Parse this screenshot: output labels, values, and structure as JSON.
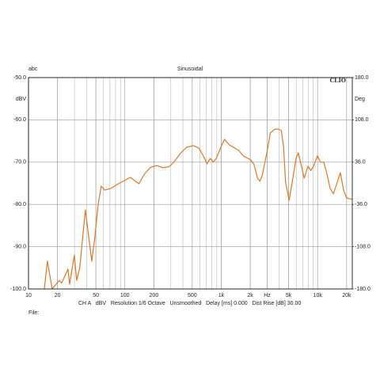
{
  "chart_data": {
    "type": "line",
    "title": "Sinusoidal",
    "corner_label": "abc",
    "brand": "CLIO",
    "y_label": "dBV",
    "y2_label": "Deg",
    "footer": "CH A   dBV   Resolution 1/6 Octave   Unsmoothed   Delay [ms] 0.000   Dist Rise [dB] 30.00",
    "file_label": "File:",
    "log_x": true,
    "grid": true,
    "xlim": [
      10,
      22900
    ],
    "xticks": [
      10,
      20,
      50,
      100,
      200,
      500,
      {
        "value": 1000,
        "label": "1k"
      },
      {
        "value": 2000,
        "label": "2k"
      },
      {
        "value": 3000,
        "label": "Hz"
      },
      {
        "value": 5000,
        "label": "5k"
      },
      {
        "value": 10000,
        "label": "10k"
      },
      {
        "value": 20000,
        "label": "20k"
      }
    ],
    "ylim": [
      -100,
      -50
    ],
    "yticks": [
      {
        "value": -50,
        "label": "-50.0"
      },
      {
        "value": -60,
        "label": "-60.0"
      },
      {
        "value": -70,
        "label": "-70.0"
      },
      {
        "value": -80,
        "label": "-80.0"
      },
      {
        "value": -90,
        "label": "-90.0"
      },
      {
        "value": -100,
        "label": "-100.0"
      }
    ],
    "y2lim": [
      -180,
      180
    ],
    "y2ticks": [
      {
        "value": 180,
        "label": "180.0"
      },
      {
        "value": 108,
        "label": "108.0"
      },
      {
        "value": 36,
        "label": "36.0"
      },
      {
        "value": -36,
        "label": "-36.0"
      },
      {
        "value": -108,
        "label": "-108.0"
      },
      {
        "value": -180,
        "label": "-180.0"
      }
    ],
    "x": [
      14.6,
      15.7,
      17.6,
      20.9,
      22.1,
      25.7,
      26.7,
      29.9,
      31.6,
      34,
      38.9,
      45.3,
      48.8,
      52.6,
      56.8,
      61.8,
      72,
      82.9,
      100,
      114,
      125,
      140,
      160,
      183,
      213,
      247,
      287,
      322,
      375,
      435,
      515,
      587,
      658,
      713,
      768,
      827,
      889,
      1000,
      1080,
      1210,
      1340,
      1510,
      1690,
      1890,
      2030,
      2190,
      2380,
      2520,
      2660,
      3010,
      3230,
      3610,
      3900,
      4200,
      4430,
      4650,
      5060,
      5450,
      5980,
      6300,
      6800,
      7250,
      7940,
      8500,
      9060,
      9950,
      10700,
      11600,
      12500,
      13500,
      14600,
      15800,
      17200,
      18600,
      20000,
      22900
    ],
    "series": [
      {
        "color": "#d9782d",
        "values": [
          -100,
          -93.4,
          -100,
          -98,
          -98.6,
          -95.3,
          -98.9,
          -92,
          -98,
          -95,
          -81.3,
          -93.4,
          -87.8,
          -80.3,
          -75.7,
          -76.6,
          -76.2,
          -75.3,
          -74.3,
          -73.6,
          -74.3,
          -75.1,
          -72.8,
          -71.3,
          -70.8,
          -71.3,
          -71.1,
          -70,
          -68,
          -66.5,
          -66.1,
          -66.7,
          -68.7,
          -70.4,
          -69.1,
          -70,
          -69.1,
          -66.3,
          -64.6,
          -65.9,
          -66.5,
          -67.2,
          -68.5,
          -69.1,
          -69.5,
          -70.6,
          -73.8,
          -74.5,
          -73.2,
          -67.2,
          -63.1,
          -62.2,
          -62.2,
          -62.5,
          -66.3,
          -74.7,
          -79,
          -74.7,
          -69.1,
          -67.8,
          -71,
          -73.8,
          -71,
          -72,
          -71,
          -68.5,
          -70,
          -70,
          -72.8,
          -76.2,
          -77.5,
          -75.1,
          -72.5,
          -76.6,
          -78.5,
          -78.8
        ]
      }
    ]
  }
}
